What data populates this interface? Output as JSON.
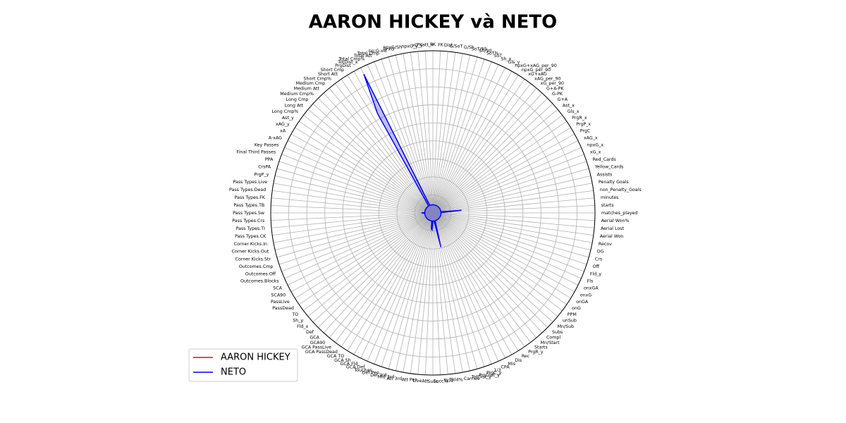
{
  "chart_data": {
    "type": "radar",
    "title": "AARON HICKEY và NETO",
    "categories": [
      "matches_played",
      "starts",
      "minutes",
      "non_Penalty_Goals",
      "Penalty Goals",
      "Assists",
      "Yellow_Cards",
      "Red_Cards",
      "xG_x",
      "npxG_x",
      "xAG_x",
      "PrgC",
      "PrgP_x",
      "PrgR_x",
      "Gls_x",
      "Ast_x",
      "G+A",
      "G-PK",
      "G+A-PK",
      "xG_per_90",
      "xAG_per_90",
      "xG+xAG",
      "npxG_per_90",
      "npxG+xAG_per_90",
      "Gls_y",
      "Sh_x",
      "SoT",
      "SoT%",
      "Sh/90",
      "SoT/90",
      "G/Sh",
      "G/SoT",
      "Dist",
      "FK",
      "PK",
      "PKatt_x",
      "xG_y",
      "npxG_y",
      "npxG/Sh",
      "G-xG",
      "np:G-xG",
      "Total Cmp",
      "Total Att",
      "Total Cmp%",
      "TotDist_x",
      "PrgDist",
      "Short Cmp",
      "Short Att",
      "Short Cmp%",
      "Medium Cmp",
      "Medium Att",
      "Medium Cmp%",
      "Long Cmp",
      "Long Att",
      "Long Cmp%",
      "Ast_y",
      "xAG_y",
      "xA",
      "A-xAG",
      "Key Passes",
      "Final Third Passes",
      "PPA",
      "CrsPA",
      "PrgP_y",
      "Pass Types.Live",
      "Pass Types.Dead",
      "Pass Types.FK",
      "Pass Types.TB",
      "Pass Types.Sw",
      "Pass Types.Crs",
      "Pass Types.TI",
      "Pass Types.CK",
      "Corner Kicks.In",
      "Corner Kicks.Out",
      "Corner Kicks.Str",
      "Outcomes.Cmp",
      "Outcomes.Off",
      "Outcomes.Blocks",
      "SCA",
      "SCA90",
      "PassLive",
      "PassDead",
      "TO",
      "Sh_y",
      "Fld_x",
      "Def",
      "GCA",
      "GCA90",
      "GCA PassLive",
      "GCA PassDead",
      "GCA TO",
      "GCA Sh",
      "GCA Fld",
      "GCA Def",
      "Touches",
      "Def Pen",
      "Def 3rd",
      "Mid 3rd",
      "Att 3rd",
      "Att Pen",
      "Live",
      "Att",
      "Succ",
      "Succ%",
      "Tkld",
      "Tkld%",
      "Carries",
      "TotDist_y",
      "PrgDist_y",
      "PrgC_y",
      "1/3",
      "CPA",
      "Mis",
      "Dis",
      "Rec",
      "PrgR_y",
      "Starts",
      "Mn/Start",
      "Compl",
      "Subs",
      "Mn/Sub",
      "unSub",
      "PPM",
      "onG",
      "onGA",
      "onxG",
      "onxGA",
      "Fls",
      "Fld_y",
      "Off",
      "Crs",
      "OG",
      "Recov",
      "Aerial Won",
      "Aerial Lost",
      "Aerial Won%"
    ],
    "series": [
      {
        "name": "AARON HICKEY",
        "color": "#ff0000",
        "values": [
          0,
          0,
          0,
          0,
          0,
          0,
          0,
          0,
          0,
          0,
          0,
          0,
          0,
          0,
          0,
          0,
          0,
          0,
          0,
          0,
          0,
          0,
          0,
          0,
          0,
          0,
          0,
          0,
          0,
          0,
          0,
          0,
          0,
          0,
          0,
          0,
          0,
          0,
          0,
          0,
          0,
          0,
          0,
          0,
          0,
          0,
          0,
          0,
          0,
          0,
          0,
          0,
          0,
          0,
          0,
          0,
          0,
          0,
          0,
          0,
          0,
          0,
          0,
          0,
          0,
          0,
          0,
          0,
          0,
          0,
          0,
          0,
          0,
          0,
          0,
          0,
          0,
          0,
          0,
          0,
          0,
          0,
          0,
          0,
          0,
          0,
          0,
          0,
          0,
          0,
          0,
          0,
          0,
          0,
          0,
          0,
          0,
          0,
          0,
          0,
          0,
          0,
          0,
          0,
          0,
          0,
          0,
          0,
          0,
          0,
          0,
          0,
          0,
          0,
          0,
          0,
          0,
          0,
          0,
          0,
          0,
          0,
          0,
          0,
          0,
          0,
          0,
          0,
          0,
          0,
          0,
          0,
          0,
          0,
          0,
          0
        ]
      },
      {
        "name": "NETO",
        "color": "#0000ff",
        "values": [
          450,
          450,
          1600,
          450,
          450,
          450,
          450,
          450,
          450,
          450,
          450,
          450,
          450,
          450,
          450,
          450,
          450,
          450,
          450,
          450,
          450,
          450,
          450,
          450,
          450,
          450,
          450,
          450,
          450,
          450,
          450,
          450,
          450,
          450,
          450,
          450,
          450,
          450,
          450,
          450,
          450,
          450,
          450,
          700,
          8600,
          6300,
          450,
          450,
          450,
          450,
          450,
          450,
          450,
          450,
          450,
          450,
          450,
          450,
          450,
          450,
          450,
          450,
          450,
          450,
          450,
          450,
          450,
          450,
          630,
          450,
          450,
          450,
          450,
          450,
          450,
          450,
          450,
          450,
          450,
          450,
          450,
          450,
          450,
          450,
          450,
          450,
          450,
          450,
          450,
          450,
          450,
          450,
          450,
          450,
          450,
          450,
          450,
          450,
          450,
          450,
          900,
          950,
          450,
          450,
          450,
          450,
          600,
          1950,
          450,
          450,
          450,
          450,
          450,
          450,
          450,
          450,
          450,
          450,
          450,
          450,
          450,
          450,
          450,
          450,
          450,
          450,
          450,
          450,
          450,
          450,
          450,
          450,
          450,
          450,
          450,
          450
        ]
      }
    ],
    "ylim": [
      0,
      9000
    ],
    "yticks": [
      1000,
      2000,
      3000,
      4000,
      5000,
      6000,
      7000,
      8000,
      9000
    ],
    "grid": true,
    "legend": "lower left"
  }
}
